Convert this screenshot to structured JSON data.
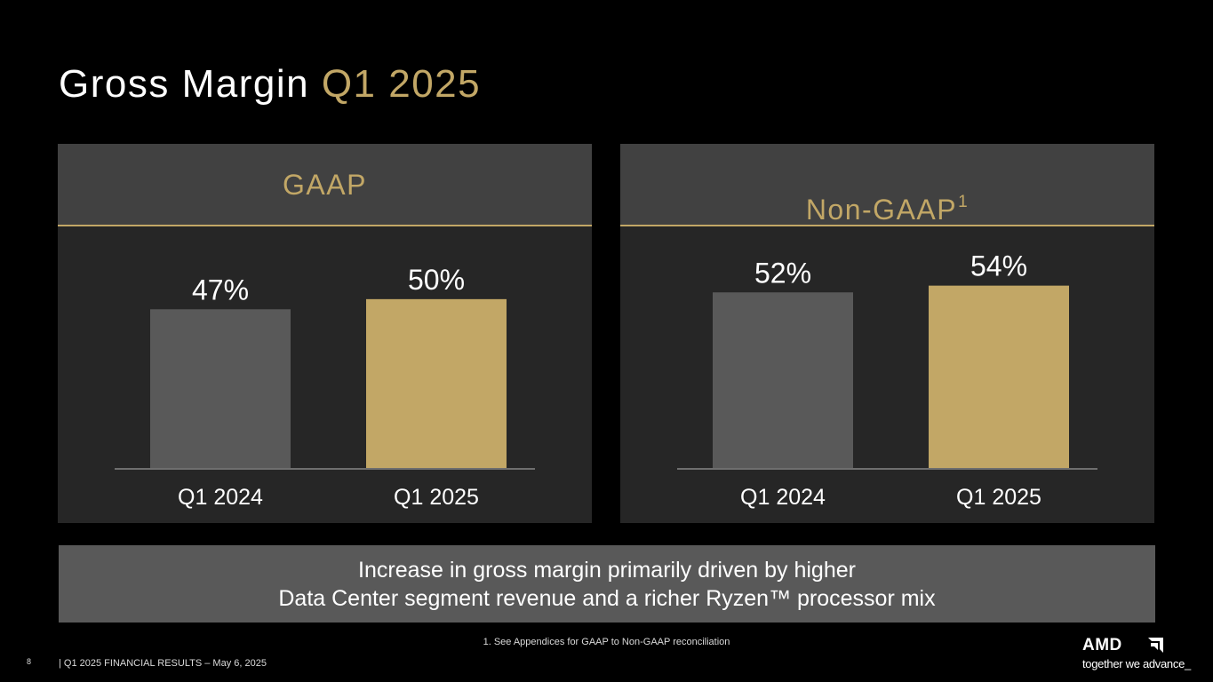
{
  "title": {
    "main": "Gross Margin",
    "accent": "Q1 2025"
  },
  "colors": {
    "accent": "#c2a766",
    "bar_prior": "#595959",
    "bar_current": "#c2a766",
    "panel_bg": "#262626",
    "header_bg": "#414141",
    "summary_bg": "#595959"
  },
  "panels": [
    {
      "title": "GAAP",
      "superscript": ""
    },
    {
      "title": "Non-GAAP",
      "superscript": "1"
    }
  ],
  "chart_data": [
    {
      "type": "bar",
      "title": "GAAP",
      "categories": [
        "Q1 2024",
        "Q1 2025"
      ],
      "values": [
        47,
        50
      ],
      "labels": [
        "47%",
        "50%"
      ],
      "ylim": [
        0,
        71
      ],
      "xlabel": "",
      "ylabel": "",
      "grid": false
    },
    {
      "type": "bar",
      "title": "Non-GAAP",
      "categories": [
        "Q1 2024",
        "Q1 2025"
      ],
      "values": [
        52,
        54
      ],
      "labels": [
        "52%",
        "54%"
      ],
      "ylim": [
        0,
        71
      ],
      "xlabel": "",
      "ylabel": "",
      "grid": false
    }
  ],
  "summary": {
    "line1": "Increase in gross margin primarily driven by higher",
    "line2": "Data Center segment revenue and a richer Ryzen™ processor mix"
  },
  "footnote": "1. See Appendices for GAAP to Non-GAAP reconciliation",
  "footer": {
    "page_number": "8",
    "text": "|  Q1 2025 FINANCIAL RESULTS – May 6, 2025"
  },
  "logo": {
    "word": "AMD",
    "tagline": "together we advance_"
  }
}
